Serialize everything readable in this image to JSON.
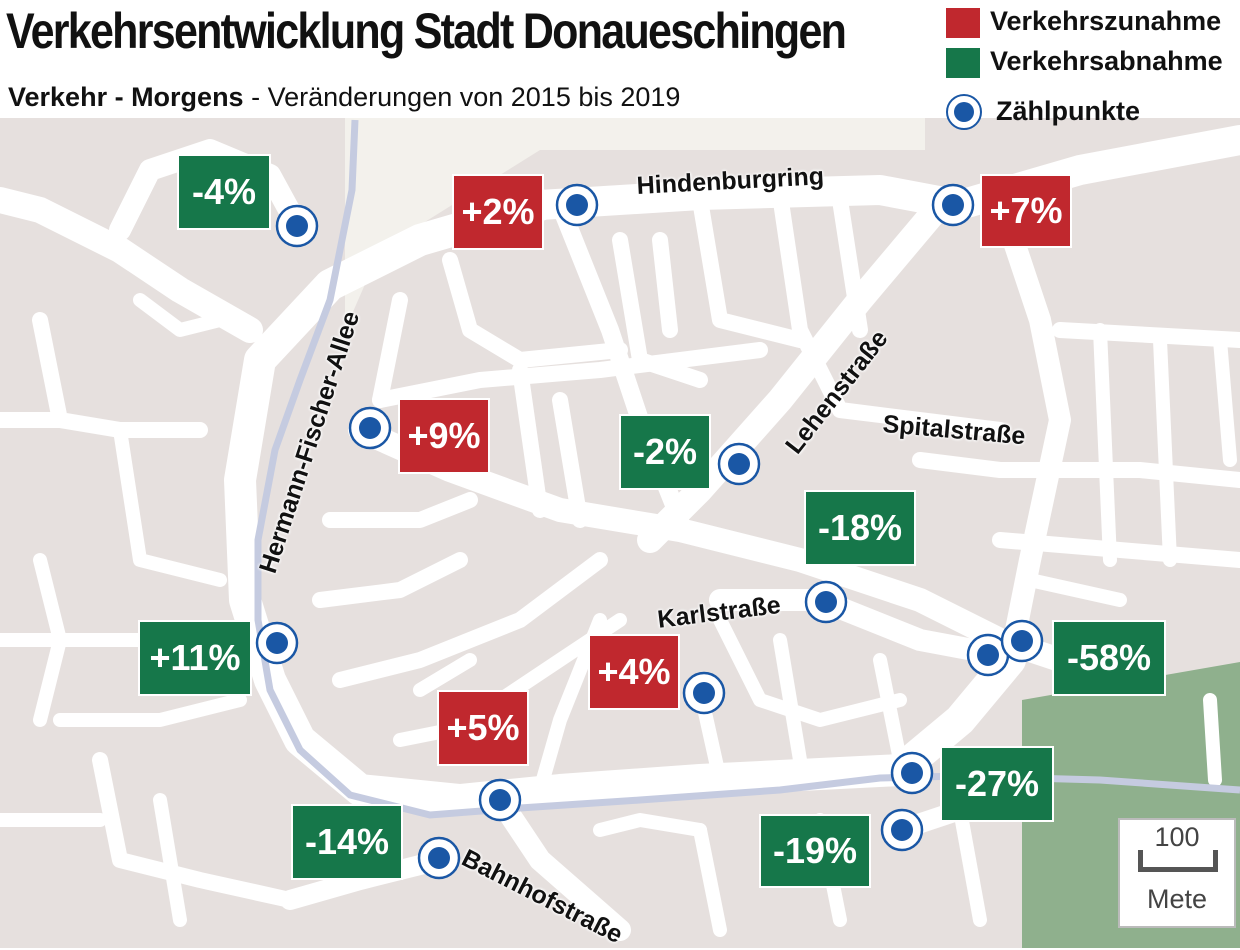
{
  "header": {
    "title": "Verkehrsentwicklung Stadt Donaueschingen",
    "subtitle_bold": "Verkehr - Morgens",
    "subtitle_rest": " - Veränderungen von 2015 bis 2019"
  },
  "legend": {
    "increase": "Verkehrszunahme",
    "decrease": "Verkehrsabnahme",
    "points": "Zählpunkte",
    "increase_color": "#c0282e",
    "decrease_color": "#16774a"
  },
  "labels": [
    {
      "text": "-4%",
      "trend": "down"
    },
    {
      "text": "+2%",
      "trend": "up"
    },
    {
      "text": "+7%",
      "trend": "up"
    },
    {
      "text": "+9%",
      "trend": "up"
    },
    {
      "text": "-2%",
      "trend": "down"
    },
    {
      "text": "-18%",
      "trend": "down"
    },
    {
      "text": "+11%",
      "trend": "up"
    },
    {
      "text": "+4%",
      "trend": "up"
    },
    {
      "text": "-58%",
      "trend": "down"
    },
    {
      "text": "+5%",
      "trend": "up"
    },
    {
      "text": "-27%",
      "trend": "down"
    },
    {
      "text": "-14%",
      "trend": "down"
    },
    {
      "text": "-19%",
      "trend": "down"
    }
  ],
  "streets": {
    "hindenburgring": "Hindenburgring",
    "hermann_fischer_allee": "Hermann-Fischer-Allee",
    "lehenstrasse": "Lehenstraße",
    "spitalstrasse": "Spitalstraße",
    "karlstrasse": "Karlstraße",
    "bahnhofstrasse": "Bahnhofstraße"
  },
  "scale": {
    "value": "100",
    "unit": "Mete"
  },
  "colors": {
    "block": "#e6e0de",
    "road": "#ffffff",
    "river": "#c5cbe0",
    "park": "#8fb08d",
    "marker": "#1a57a5"
  }
}
